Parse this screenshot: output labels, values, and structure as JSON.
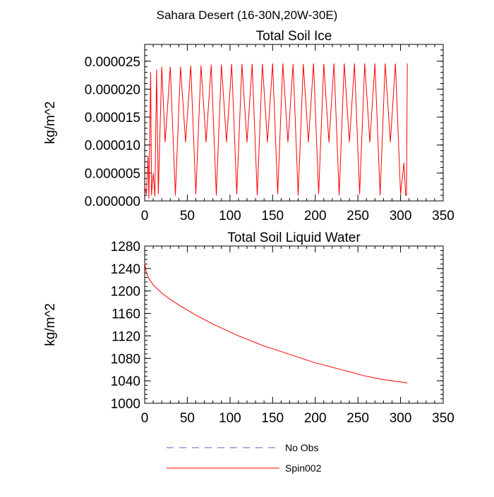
{
  "figure_title": "Sahara Desert (16-30N,20W-30E)",
  "legend": [
    {
      "label": "No Obs",
      "color": "#5b5bd6",
      "dash": true
    },
    {
      "label": "Spin002",
      "color": "#ff0000",
      "dash": false
    }
  ],
  "chart_data": [
    {
      "type": "line",
      "title": "Total Soil Ice",
      "xlabel": "",
      "ylabel": "kg/m^2",
      "xlim": [
        0,
        350
      ],
      "ylim": [
        0,
        2.8e-05
      ],
      "xticks": [
        0,
        50,
        100,
        150,
        200,
        250,
        300,
        350
      ],
      "xtick_labels": [
        "0",
        "50",
        "100",
        "150",
        "200",
        "250",
        "300",
        "350"
      ],
      "yticks": [
        0,
        5e-06,
        1e-05,
        1.5e-05,
        2e-05,
        2.5e-05
      ],
      "ytick_labels": [
        "0.000000",
        "0.000005",
        "0.000010",
        "0.000015",
        "0.000020",
        "0.000025"
      ],
      "series": [
        {
          "name": "Spin002",
          "color": "#ff0000",
          "note": "seasonal cycle: sharp peaks ~0.0000235-0.0000247 roughly every 6 months, secondary peaks ~0.0000105, troughs ~0.000001",
          "x": [
            0,
            2,
            4,
            5,
            7,
            8,
            10,
            12,
            14,
            16,
            20,
            24,
            30,
            36,
            42,
            48,
            54,
            60,
            66,
            72,
            78,
            84,
            90,
            96,
            102,
            108,
            114,
            120,
            126,
            132,
            138,
            144,
            150,
            156,
            162,
            168,
            174,
            180,
            186,
            192,
            198,
            204,
            210,
            216,
            222,
            228,
            234,
            240,
            246,
            252,
            258,
            264,
            270,
            276,
            282,
            288,
            294,
            300,
            304,
            306,
            307,
            308
          ],
          "y": [
            2.5e-06,
            1.2e-06,
            8e-06,
            4e-07,
            2.3e-05,
            1e-06,
            5e-06,
            8e-07,
            2.35e-05,
            1.2e-06,
            2.4e-05,
            1.05e-05,
            2.4e-05,
            1e-06,
            2.4e-05,
            1.05e-05,
            2.42e-05,
            1.2e-06,
            2.42e-05,
            1.05e-05,
            2.44e-05,
            1e-06,
            2.44e-05,
            1.05e-05,
            2.45e-05,
            1.2e-06,
            2.45e-05,
            1.05e-05,
            2.45e-05,
            1e-06,
            2.45e-05,
            1.05e-05,
            2.46e-05,
            1.2e-06,
            2.46e-05,
            1.05e-05,
            2.45e-05,
            1e-06,
            2.45e-05,
            1.05e-05,
            2.46e-05,
            1.2e-06,
            2.45e-05,
            1.05e-05,
            2.46e-05,
            1e-06,
            2.46e-05,
            1.05e-05,
            2.46e-05,
            1.2e-06,
            2.46e-05,
            1.05e-05,
            2.46e-05,
            1e-06,
            2.46e-05,
            1.05e-05,
            2.46e-05,
            1.2e-06,
            6.8e-06,
            1e-06,
            1e-06,
            2.46e-05
          ]
        }
      ]
    },
    {
      "type": "line",
      "title": "Total Soil Liquid Water",
      "xlabel": "",
      "ylabel": "kg/m^2",
      "xlim": [
        0,
        350
      ],
      "ylim": [
        1000,
        1280
      ],
      "xticks": [
        0,
        50,
        100,
        150,
        200,
        250,
        300,
        350
      ],
      "xtick_labels": [
        "0",
        "50",
        "100",
        "150",
        "200",
        "250",
        "300",
        "350"
      ],
      "yticks": [
        1000,
        1040,
        1080,
        1120,
        1160,
        1200,
        1240,
        1280
      ],
      "ytick_labels": [
        "1000",
        "1040",
        "1080",
        "1120",
        "1160",
        "1200",
        "1240",
        "1280"
      ],
      "series": [
        {
          "name": "Spin002",
          "color": "#ff0000",
          "x": [
            0,
            2,
            5,
            10,
            20,
            30,
            40,
            50,
            60,
            70,
            80,
            90,
            100,
            110,
            120,
            130,
            140,
            150,
            160,
            170,
            180,
            190,
            200,
            210,
            220,
            230,
            240,
            250,
            260,
            270,
            280,
            290,
            300,
            308
          ],
          "y": [
            1250,
            1232,
            1222,
            1211,
            1196,
            1185,
            1175,
            1166,
            1157,
            1149,
            1141,
            1134,
            1127,
            1120,
            1114,
            1108,
            1102,
            1097,
            1092,
            1087,
            1082,
            1077,
            1072,
            1068,
            1064,
            1060,
            1056,
            1052,
            1048,
            1045,
            1042,
            1040,
            1038,
            1036
          ]
        }
      ]
    }
  ]
}
